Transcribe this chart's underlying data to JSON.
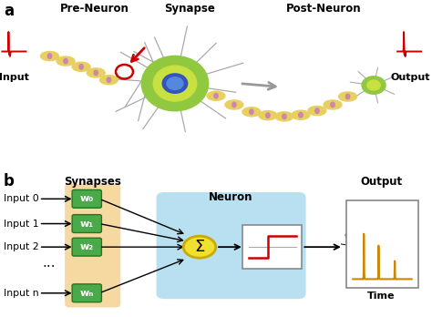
{
  "title_a": "a",
  "title_b": "b",
  "label_pre_neuron": "Pre-Neuron",
  "label_synapse": "Synapse",
  "label_post_neuron": "Post-Neuron",
  "label_input": "Input",
  "label_output": "Output",
  "label_synapses": "Synapses",
  "label_neuron": "Neuron",
  "label_output2": "Output",
  "label_time": "Time",
  "input_labels": [
    "Input 0",
    "Input 1",
    "Input 2",
    "",
    "Input n"
  ],
  "weight_labels": [
    "w₀",
    "w₁",
    "w₂",
    "⋅⋅⋅",
    "wₙ"
  ],
  "bg_color": "#ffffff",
  "synapse_bg": "#f5d9a0",
  "neuron_bg": "#b8e0f0",
  "weight_box_color": "#4aaa4a",
  "axon_color": "#e8d060",
  "axon_dot_color": "#cc88aa",
  "neuron_outer": "#90c840",
  "neuron_mid": "#c8e040",
  "neuron_nucleus_outer": "#3355bb",
  "neuron_nucleus_inner": "#5588dd",
  "dendrite_color": "#aaaaaa",
  "red_signal": "#cc0000",
  "orange_signal": "#cc8800",
  "sigma_fill": "#f0e030",
  "sigma_edge": "#ccaa00",
  "gray_arrow": "#999999"
}
